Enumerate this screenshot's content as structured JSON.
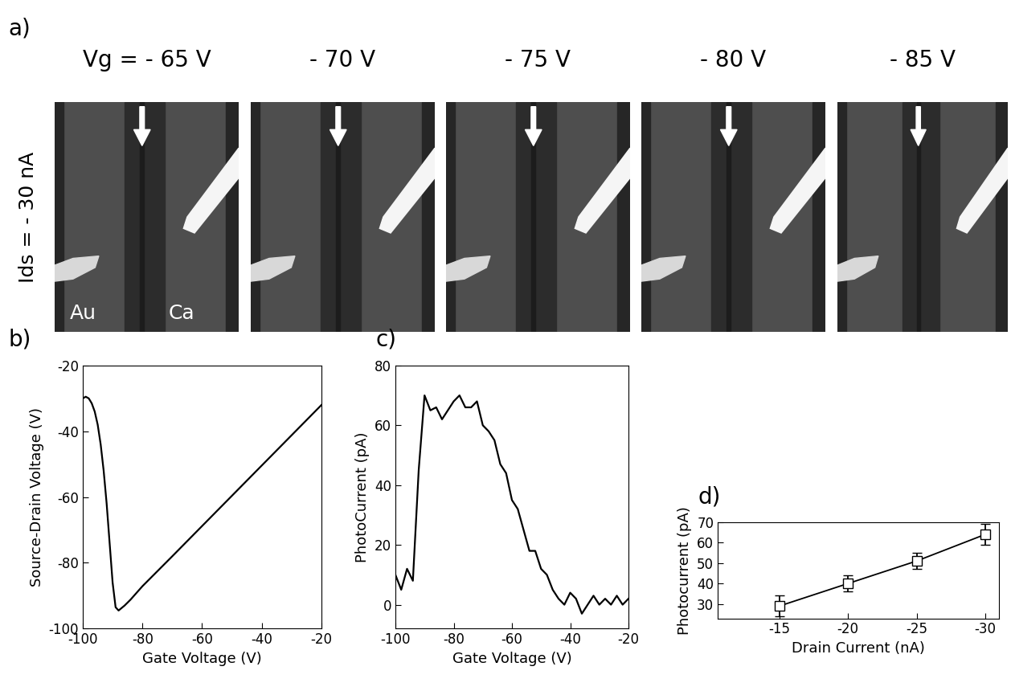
{
  "panel_a": {
    "label": "a)",
    "row_label": "Ids = - 30 nA",
    "images": [
      {
        "title": "Vg = - 65 V",
        "labels": [
          "Au",
          "Ca"
        ]
      },
      {
        "title": "- 70 V"
      },
      {
        "title": "- 75 V"
      },
      {
        "title": "- 80 V"
      },
      {
        "title": "- 85 V"
      }
    ]
  },
  "chart_data": [
    {
      "panel": "b)",
      "type": "line",
      "color": "#000000",
      "line_style": "solid",
      "x": [
        -100,
        -99,
        -98,
        -97,
        -96,
        -95,
        -94,
        -93,
        -92,
        -91,
        -90,
        -89,
        -88,
        -86,
        -84,
        -80,
        -70,
        -60,
        -50,
        -40,
        -30,
        -20
      ],
      "values": [
        -30,
        -29.5,
        -30,
        -31.5,
        -34,
        -38,
        -44,
        -52,
        -62,
        -74,
        -86,
        -93.5,
        -94.5,
        -93,
        -91.2,
        -87.1,
        -78,
        -68.8,
        -59.6,
        -50.4,
        -41.2,
        -32
      ],
      "xlabel": "Gate Voltage (V)",
      "ylabel": "Source-Drain Voltage (V)",
      "xlim": [
        -100,
        -20
      ],
      "ylim": [
        -100,
        -20
      ],
      "xticks": [
        -100,
        -80,
        -60,
        -40,
        -20
      ],
      "yticks": [
        -100,
        -80,
        -60,
        -40,
        -20
      ]
    },
    {
      "panel": "c)",
      "type": "line",
      "color": "#000000",
      "line_style": "solid",
      "x": [
        -100,
        -98,
        -96,
        -94,
        -92,
        -90,
        -88,
        -86,
        -84,
        -82,
        -80,
        -78,
        -76,
        -74,
        -72,
        -70,
        -68,
        -66,
        -64,
        -62,
        -60,
        -58,
        -56,
        -54,
        -52,
        -50,
        -48,
        -46,
        -44,
        -42,
        -40,
        -38,
        -36,
        -34,
        -32,
        -30,
        -28,
        -26,
        -24,
        -22,
        -20
      ],
      "values": [
        10,
        5,
        12,
        8,
        45,
        70,
        65,
        66,
        62,
        65,
        68,
        70,
        66,
        66,
        68,
        60,
        58,
        55,
        47,
        44,
        35,
        32,
        25,
        18,
        18,
        12,
        10,
        5,
        2,
        0,
        4,
        2,
        -3,
        0,
        3,
        0,
        2,
        0,
        3,
        0,
        2
      ],
      "xlabel": "Gate Voltage (V)",
      "ylabel": "PhotoCurrent (pA)",
      "xlim": [
        -100,
        -20
      ],
      "ylim": [
        -8,
        80
      ],
      "xticks": [
        -100,
        -80,
        -60,
        -40,
        -20
      ],
      "yticks": [
        0,
        20,
        40,
        60,
        80
      ]
    },
    {
      "panel": "d)",
      "type": "line",
      "color": "#000000",
      "line_style": "solid",
      "marker": "square",
      "x": [
        -15,
        -20,
        -25,
        -30
      ],
      "values": [
        29,
        40,
        51,
        64
      ],
      "errors": [
        5,
        4,
        4,
        5
      ],
      "xlabel": "Drain Current (nA)",
      "ylabel": "Photocurrent (pA)",
      "xlim": [
        -10.5,
        -31
      ],
      "ylim": [
        23,
        70
      ],
      "xticks": [
        -15,
        -20,
        -25,
        -30
      ],
      "yticks": [
        30,
        40,
        50,
        60,
        70
      ]
    }
  ]
}
